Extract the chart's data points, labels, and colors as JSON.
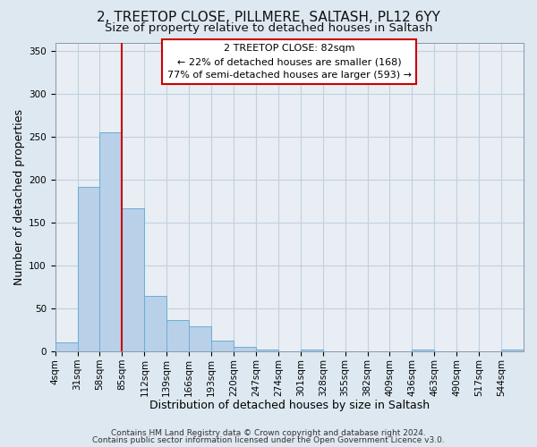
{
  "title": "2, TREETOP CLOSE, PILLMERE, SALTASH, PL12 6YY",
  "subtitle": "Size of property relative to detached houses in Saltash",
  "xlabel": "Distribution of detached houses by size in Saltash",
  "ylabel": "Number of detached properties",
  "bin_labels": [
    "4sqm",
    "31sqm",
    "58sqm",
    "85sqm",
    "112sqm",
    "139sqm",
    "166sqm",
    "193sqm",
    "220sqm",
    "247sqm",
    "274sqm",
    "301sqm",
    "328sqm",
    "355sqm",
    "382sqm",
    "409sqm",
    "436sqm",
    "463sqm",
    "490sqm",
    "517sqm",
    "544sqm"
  ],
  "bin_counts": [
    10,
    192,
    255,
    167,
    65,
    37,
    29,
    13,
    5,
    2,
    0,
    2,
    0,
    0,
    0,
    0,
    2,
    0,
    0,
    0,
    2
  ],
  "bar_color": "#b8d0e8",
  "bar_edge_color": "#6aaed6",
  "vline_x": 3,
  "vline_color": "#cc0000",
  "annotation_title": "2 TREETOP CLOSE: 82sqm",
  "annotation_line1": "← 22% of detached houses are smaller (168)",
  "annotation_line2": "77% of semi-detached houses are larger (593) →",
  "annotation_box_facecolor": "#ffffff",
  "annotation_box_edgecolor": "#cc0000",
  "ylim": [
    0,
    360
  ],
  "yticks": [
    0,
    50,
    100,
    150,
    200,
    250,
    300,
    350
  ],
  "footer1": "Contains HM Land Registry data © Crown copyright and database right 2024.",
  "footer2": "Contains public sector information licensed under the Open Government Licence v3.0.",
  "bg_color": "#dde8f0",
  "plot_bg_color": "#e8eef4",
  "grid_color": "#c0d0e0",
  "title_fontsize": 11,
  "subtitle_fontsize": 9.5,
  "axis_label_fontsize": 9,
  "tick_fontsize": 7.5,
  "annotation_fontsize": 8,
  "footer_fontsize": 6.5
}
